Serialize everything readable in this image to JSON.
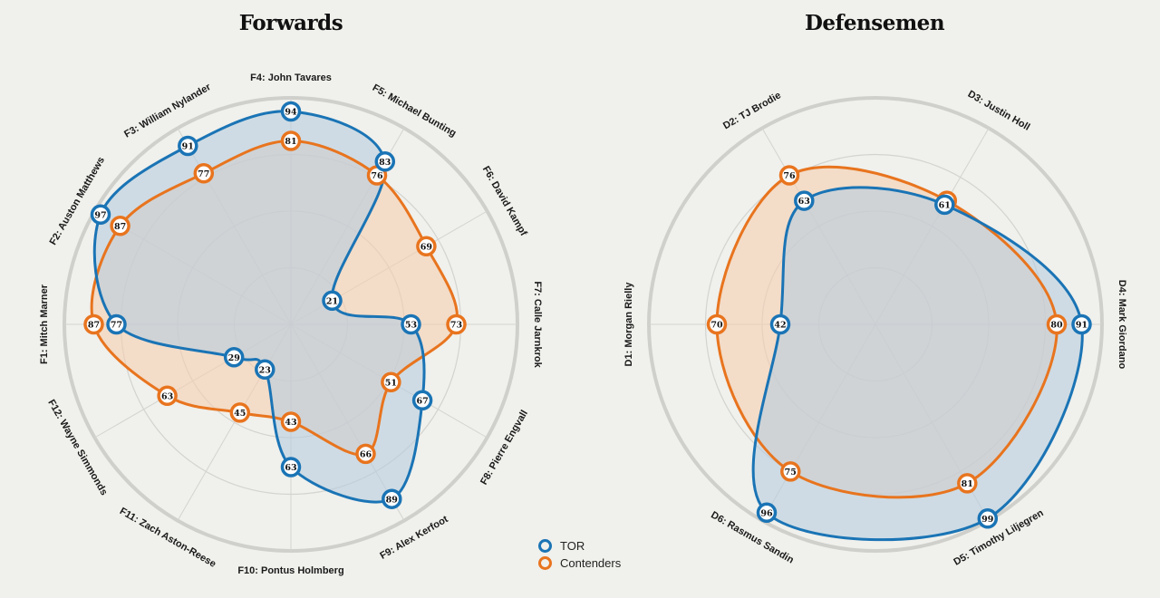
{
  "colors": {
    "tor": "#1a74b5",
    "contenders": "#e8741e",
    "tor_fill": "#b8cde0",
    "contenders_fill": "#f5cfb1",
    "grid": "#d3d3cf",
    "outer_ring": "#cfcfcb",
    "background": "#f0f0ec"
  },
  "legend": [
    {
      "name": "TOR",
      "series": "tor"
    },
    {
      "name": "Contenders",
      "series": "contenders"
    }
  ],
  "chart_data": [
    {
      "type": "radar",
      "title": "Forwards",
      "range": [
        0,
        100
      ],
      "rings": [
        25,
        50,
        75,
        100
      ],
      "grid": true,
      "legend_position": "bottom-right",
      "categories": [
        "F1: Mitch Marner",
        "F2: Auston Matthews",
        "F3: William Nylander",
        "F4: John Tavares",
        "F5: Michael Bunting",
        "F6: David Kampf",
        "F7: Calle Jarnkrok",
        "F8: Pierre Engvall",
        "F9: Alex Kerfoot",
        "F10: Pontus Holmberg",
        "F11: Zach Aston-Reese",
        "F12: Wayne Simmonds"
      ],
      "series": [
        {
          "name": "Contenders",
          "key": "contenders",
          "values": [
            87,
            87,
            77,
            81,
            76,
            69,
            73,
            51,
            66,
            43,
            45,
            63
          ]
        },
        {
          "name": "TOR",
          "key": "tor",
          "values": [
            77,
            97,
            91,
            94,
            83,
            21,
            53,
            67,
            89,
            63,
            23,
            29
          ]
        }
      ]
    },
    {
      "type": "radar",
      "title": "Defensemen",
      "range": [
        0,
        100
      ],
      "rings": [
        25,
        50,
        75,
        100
      ],
      "grid": true,
      "categories": [
        "D1: Morgan Rielly",
        "D2: TJ Brodie",
        "D3: Justin Holl",
        "D4: Mark Giordano",
        "D5: Timothy Liljegren",
        "D6: Rasmus Sandin"
      ],
      "series": [
        {
          "name": "Contenders",
          "key": "contenders",
          "values": [
            70,
            76,
            63,
            80,
            81,
            75
          ]
        },
        {
          "name": "TOR",
          "key": "tor",
          "values": [
            42,
            63,
            61,
            91,
            99,
            96
          ]
        }
      ]
    }
  ]
}
